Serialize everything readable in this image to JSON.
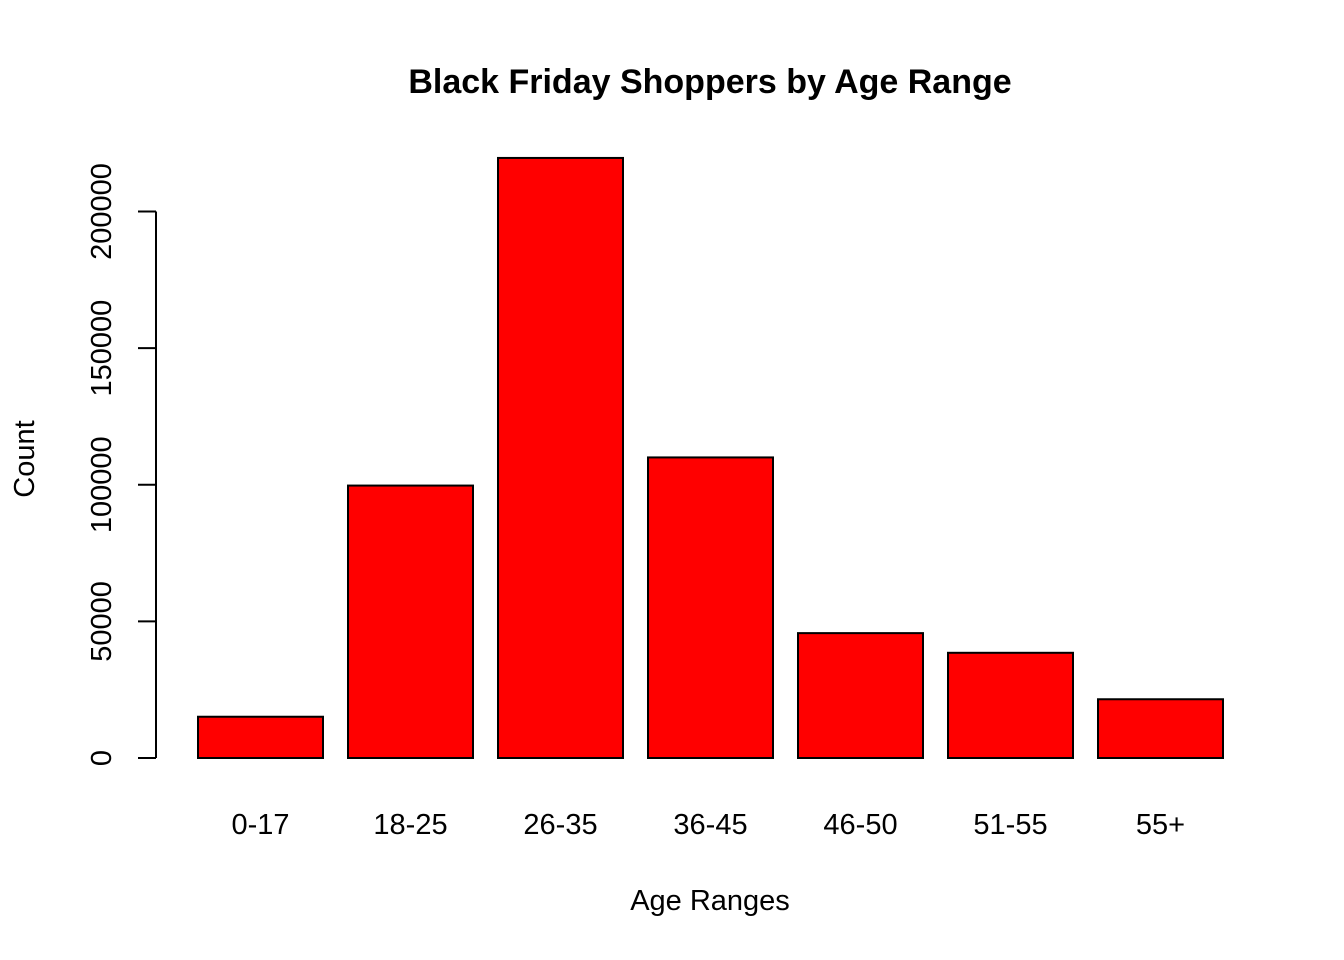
{
  "chart_data": {
    "type": "bar",
    "title": "Black Friday Shoppers by Age Range",
    "xlabel": "Age Ranges",
    "ylabel": "Count",
    "categories": [
      "0-17",
      "18-25",
      "26-35",
      "36-45",
      "46-50",
      "51-55",
      "55+"
    ],
    "values": [
      15100,
      99700,
      219600,
      110000,
      45700,
      38500,
      21500
    ],
    "ylim": [
      0,
      220000
    ],
    "yticks": [
      0,
      50000,
      100000,
      150000,
      200000
    ],
    "ytick_labels": [
      "0",
      "50000",
      "100000",
      "150000",
      "200000"
    ],
    "grid": false,
    "legend": "none",
    "colors": {
      "bar_fill": "#ff0000",
      "bar_border": "#000000",
      "text": "#000000"
    }
  }
}
